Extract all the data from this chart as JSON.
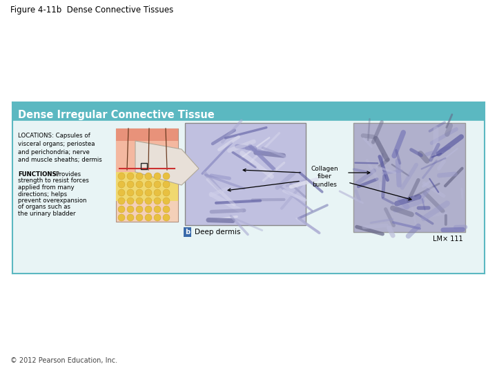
{
  "title": "Figure 4-11b  Dense Connective Tissues",
  "subtitle": "Dense Irregular Connective Tissue",
  "locations_text": "LOCATIONS: Capsules of\nvisceral organs; periostea\nand perichondria; nerve\nand muscle sheaths; dermis",
  "functions_text": "FUNCTIONS: Provides\nstrength to resist forces\napplied from many\ndirections; helps\nprevent overexpansion\nof organs such as\nthe urinary bladder",
  "label_collagen": "Collagen\nfiber\nbundles",
  "label_deep_dermis": "Deep dermis",
  "label_lm": "LM× 111",
  "background_color": "#ffffff",
  "box_header_color": "#5bb8c1",
  "box_body_color": "#e8f4f5",
  "box_border_color": "#5bb8c1",
  "title_color": "#000000",
  "text_color": "#000000",
  "copyright_text": "© 2012 Pearson Education, Inc."
}
